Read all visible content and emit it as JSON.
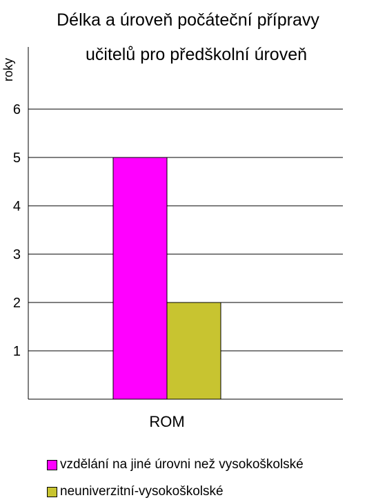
{
  "chart_data": {
    "type": "bar",
    "title_lines": [
      "Délka a úroveň počáteční přípravy",
      "učitelů pro předškolní úroveň"
    ],
    "ylabel": "roky",
    "xlabel": "",
    "categories": [
      "ROM"
    ],
    "ylim": [
      0,
      7
    ],
    "yticks": [
      1,
      2,
      3,
      4,
      5,
      6
    ],
    "grid": true,
    "legend_position": "bottom",
    "series": [
      {
        "name": "vzdělání na jiné úrovni než vysokoškolské",
        "color": "#ff00ff",
        "values": [
          5
        ]
      },
      {
        "name": "neuniverzitní-vysokoškolské",
        "color": "#c8c430",
        "values": [
          2
        ]
      }
    ]
  }
}
